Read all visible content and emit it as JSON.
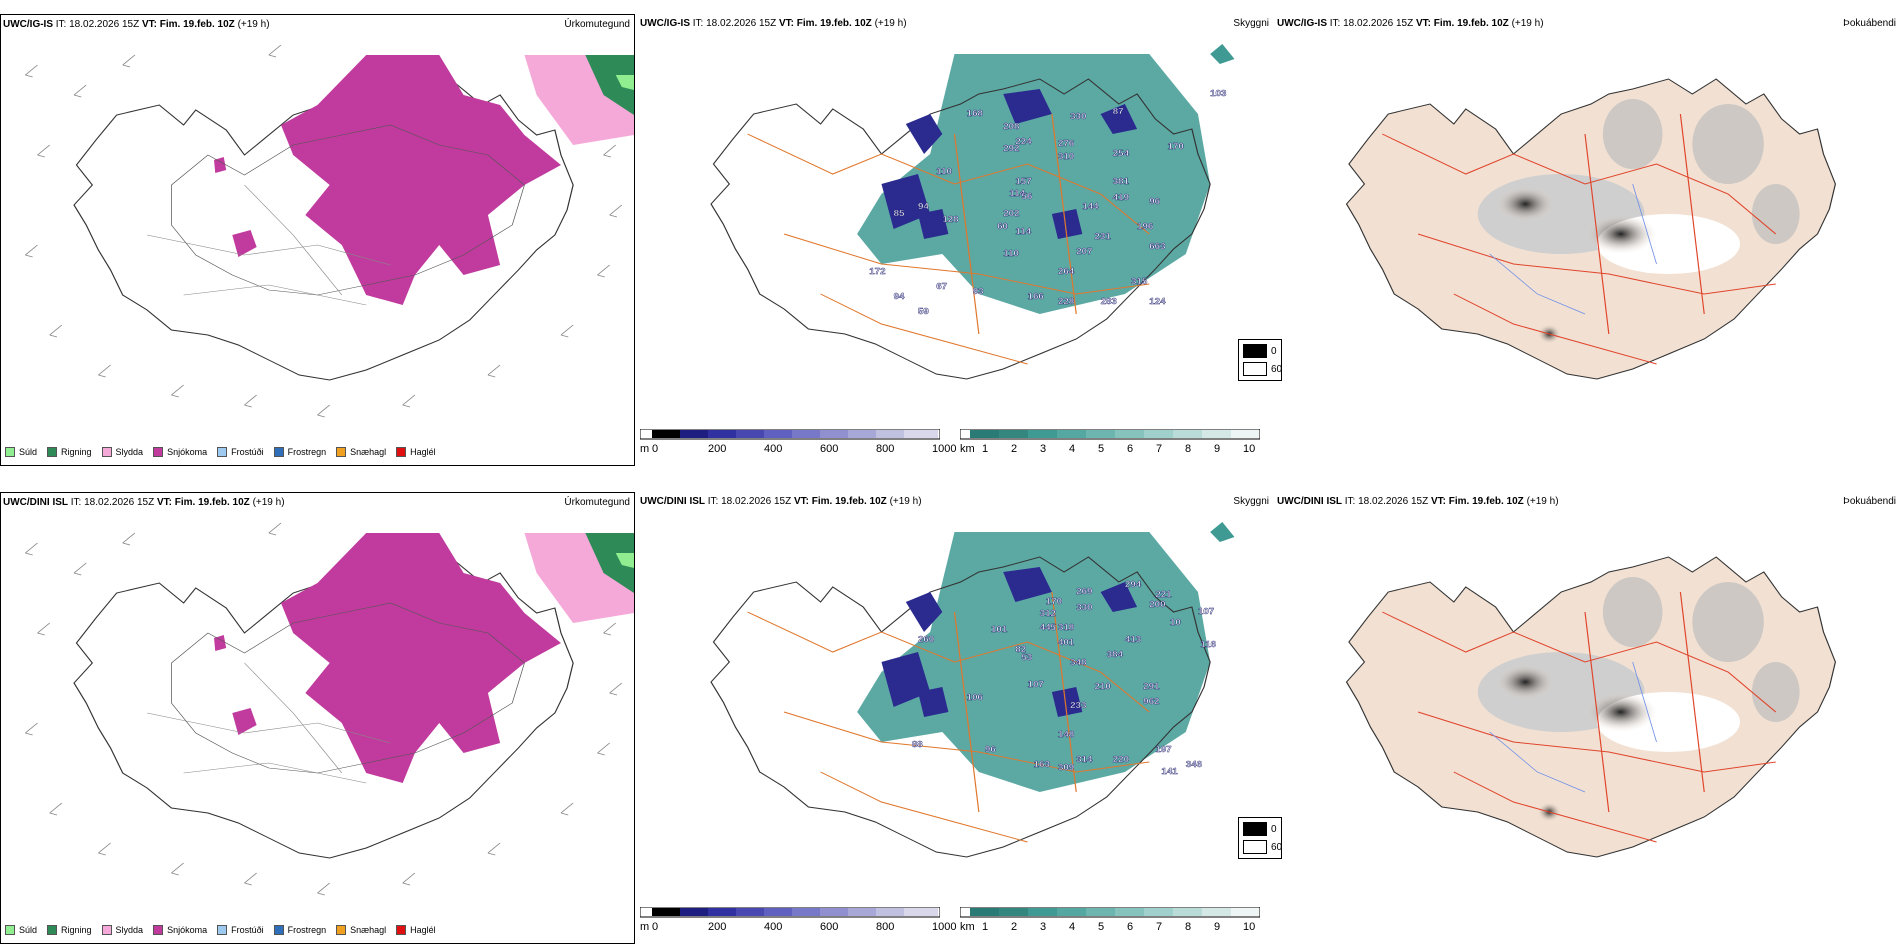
{
  "rows": [
    {
      "model": "UWC/IG-IS",
      "it_label": "IT:",
      "it_value": "18.02.2026 15Z",
      "vt_label": "VT:",
      "vt_value": "Fim. 19.feb. 10Z",
      "lead": "(+19 h)",
      "panel_titles": [
        "Úrkomutegund",
        "Skyggni",
        "Þokuábendi"
      ],
      "visibility_labels": [
        "103",
        "87",
        "168",
        "208",
        "224",
        "292",
        "276",
        "310",
        "330",
        "254",
        "170",
        "110",
        "157",
        "114",
        "56",
        "96",
        "381",
        "94",
        "128",
        "202",
        "60",
        "144",
        "419",
        "114",
        "231",
        "196",
        "85",
        "663",
        "110",
        "207",
        "264",
        "315",
        "67",
        "93",
        "124",
        "166",
        "228",
        "283",
        "94",
        "172",
        "59"
      ]
    },
    {
      "model": "UWC/DINI ISL",
      "it_label": "IT:",
      "it_value": "18.02.2026 15Z",
      "vt_label": "VT:",
      "vt_value": "Fim. 19.feb. 10Z",
      "lead": "(+19 h)",
      "panel_titles": [
        "Úrkomutegund",
        "Skyggni",
        "Þokuábendi"
      ],
      "visibility_labels": [
        "269",
        "294",
        "170",
        "312",
        "330",
        "200",
        "221",
        "107",
        "445",
        "401",
        "318",
        "413",
        "10",
        "116",
        "101",
        "384",
        "260",
        "82",
        "348",
        "53",
        "291",
        "106",
        "107",
        "210",
        "233",
        "962",
        "88",
        "148",
        "197",
        "96",
        "163",
        "314",
        "220",
        "309",
        "346",
        "141"
      ]
    }
  ],
  "precip_legend": [
    {
      "label": "Súld",
      "color": "#90ee90"
    },
    {
      "label": "Rigning",
      "color": "#2e8b57"
    },
    {
      "label": "Slydda",
      "color": "#f5a9d8"
    },
    {
      "label": "Snjókoma",
      "color": "#c13b9e"
    },
    {
      "label": "Frostúði",
      "color": "#9ec9f0"
    },
    {
      "label": "Frostregn",
      "color": "#2f6eb8"
    },
    {
      "label": "Snæhagl",
      "color": "#f0a020"
    },
    {
      "label": "Haglél",
      "color": "#e01010"
    }
  ],
  "cbar_m": {
    "unit": "m",
    "ticks": [
      "0",
      "200",
      "400",
      "600",
      "800",
      "1000"
    ]
  },
  "cbar_km": {
    "unit": "km",
    "ticks": [
      "1",
      "2",
      "3",
      "4",
      "5",
      "6",
      "7",
      "8",
      "9",
      "10"
    ]
  },
  "fog_legend": [
    "0",
    "60"
  ],
  "colors": {
    "snow": "#c13b9e",
    "sleet": "#f5a9d8",
    "rain": "#2e8b57",
    "drizzle": "#90ee90",
    "land": "#f2e1d3",
    "road": "#e0772c",
    "teal": "#3f9a94",
    "navy": "#2a2a8f"
  }
}
